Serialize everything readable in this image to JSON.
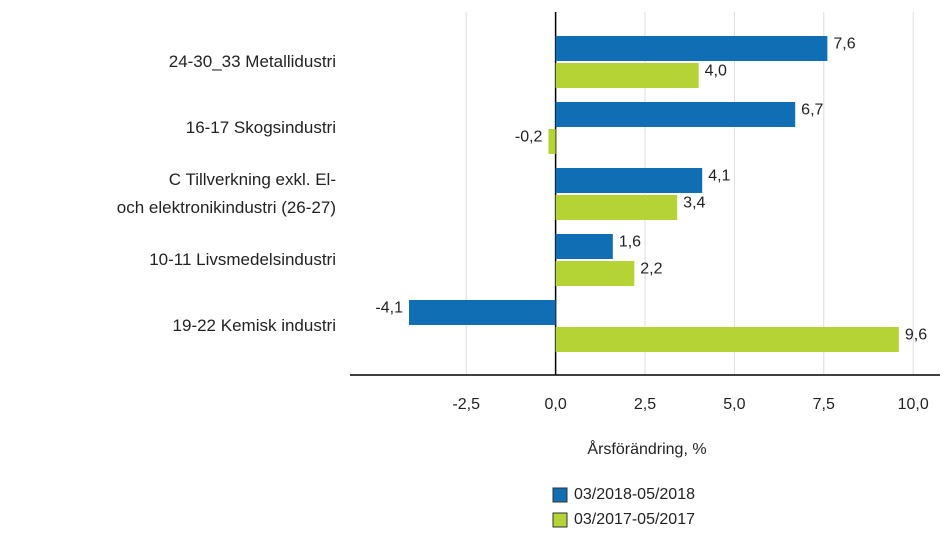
{
  "chart_data": {
    "type": "bar",
    "orientation": "horizontal",
    "categories": [
      "24-30_33 Metallidustri",
      "16-17 Skogsindustri",
      "C Tillverkning exkl. El-\noch elektronikindustri  (26-27)",
      "10-11 Livsmedelsindustri",
      "19-22 Kemisk industri"
    ],
    "series": [
      {
        "name": "03/2018-05/2018",
        "color": "#0f6eb4",
        "values": [
          7.6,
          6.7,
          4.1,
          1.6,
          -4.1
        ],
        "value_labels": [
          "7,6",
          "6,7",
          "4,1",
          "1,6",
          "-4,1"
        ]
      },
      {
        "name": "03/2017-05/2017",
        "color": "#b5d334",
        "values": [
          4.0,
          -0.2,
          3.4,
          2.2,
          9.6
        ],
        "value_labels": [
          "4,0",
          "-0,2",
          "3,4",
          "2,2",
          "9,6"
        ]
      }
    ],
    "xlabel": "Årsförändring, %",
    "xlim": [
      -5.75,
      10.75
    ],
    "xticks": [
      {
        "value": -2.5,
        "label": "-2,5"
      },
      {
        "value": 0,
        "label": "0,0"
      },
      {
        "value": 2.5,
        "label": "2,5"
      },
      {
        "value": 5,
        "label": "5,0"
      },
      {
        "value": 7.5,
        "label": "7,5"
      },
      {
        "value": 10,
        "label": "10,0"
      }
    ],
    "grid": true,
    "legend": "bottom"
  }
}
